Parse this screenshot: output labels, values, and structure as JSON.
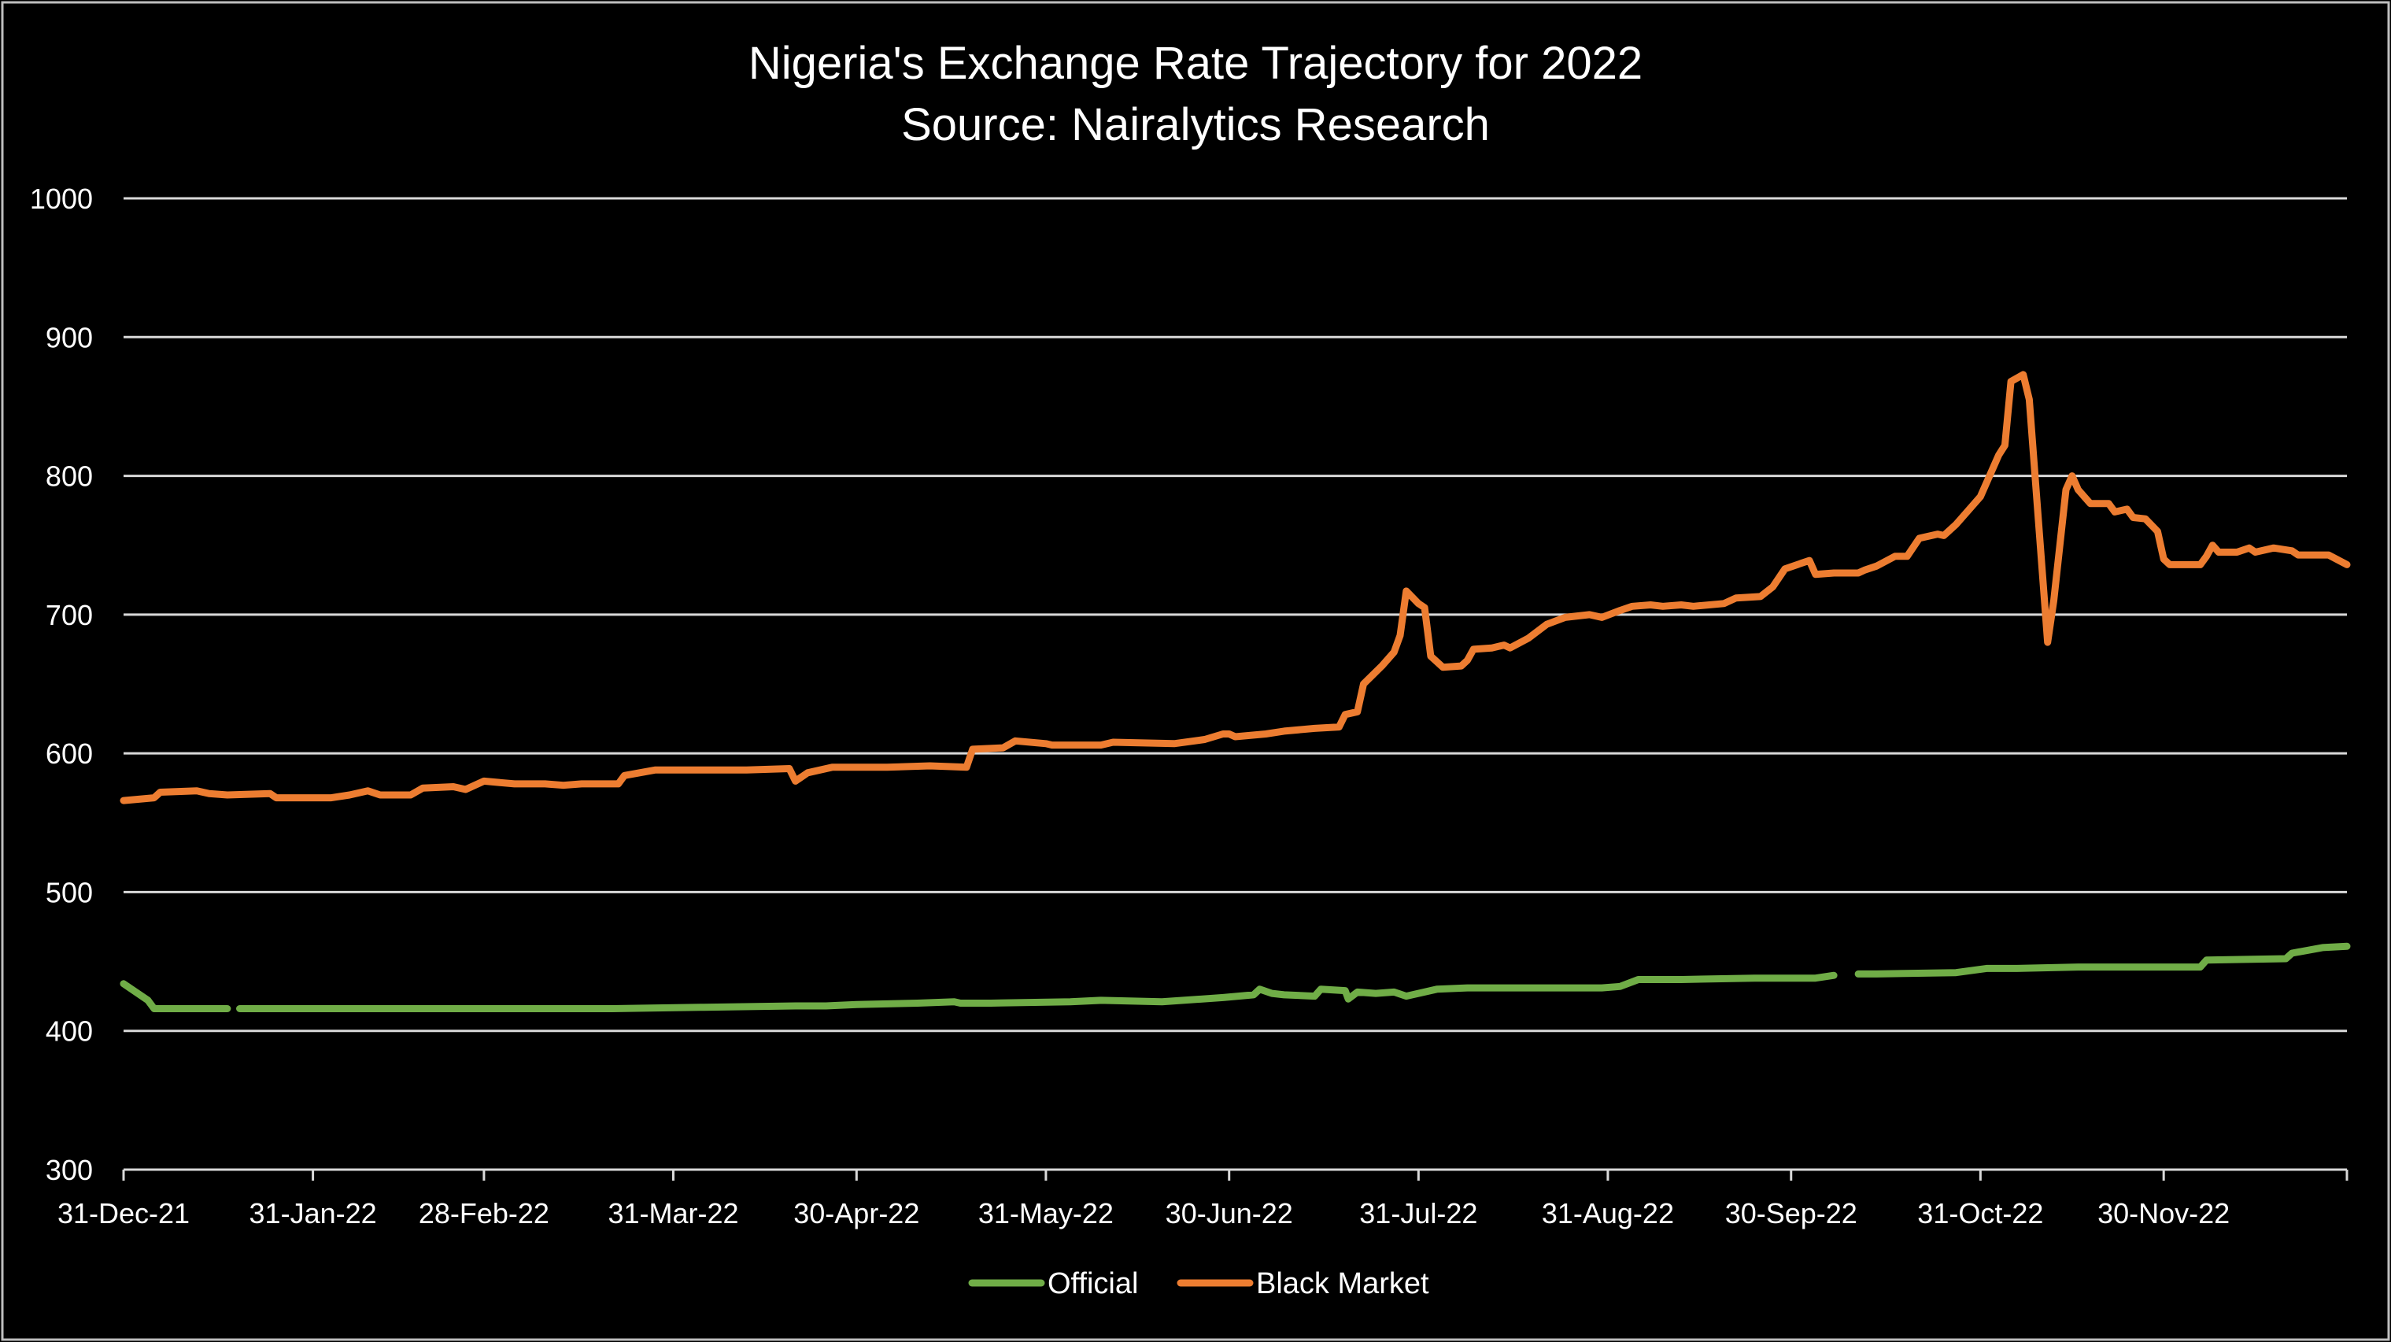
{
  "chart_data": {
    "type": "line",
    "title": "Nigeria's Exchange Rate Trajectory for 2022",
    "subtitle": "Source: Nairalytics Research",
    "xlabel": "",
    "ylabel": "",
    "x_unit": "days since 31-Dec-21",
    "xlim": [
      0,
      364
    ],
    "ylim": [
      300,
      1000
    ],
    "yticks": [
      300,
      400,
      500,
      600,
      700,
      800,
      900,
      1000
    ],
    "xticks": [
      {
        "day": 0,
        "label": "31-Dec-21"
      },
      {
        "day": 31,
        "label": "31-Jan-22"
      },
      {
        "day": 59,
        "label": "28-Feb-22"
      },
      {
        "day": 90,
        "label": "31-Mar-22"
      },
      {
        "day": 120,
        "label": "30-Apr-22"
      },
      {
        "day": 151,
        "label": "31-May-22"
      },
      {
        "day": 181,
        "label": "30-Jun-22"
      },
      {
        "day": 212,
        "label": "31-Jul-22"
      },
      {
        "day": 243,
        "label": "31-Aug-22"
      },
      {
        "day": 273,
        "label": "30-Sep-22"
      },
      {
        "day": 304,
        "label": "31-Oct-22"
      },
      {
        "day": 334,
        "label": "30-Nov-22"
      }
    ],
    "grid": true,
    "legend_position": "bottom-center",
    "series": [
      {
        "name": "Official",
        "color": "#70ad47",
        "segments": [
          [
            [
              0,
              434
            ],
            [
              4,
              422
            ],
            [
              5,
              416
            ],
            [
              17,
              416
            ]
          ],
          [
            [
              19,
              416
            ],
            [
              30,
              416
            ],
            [
              55,
              416
            ],
            [
              80,
              416
            ],
            [
              95,
              417
            ],
            [
              110,
              418
            ],
            [
              115,
              418
            ],
            [
              120,
              419
            ],
            [
              130,
              420
            ],
            [
              136,
              421
            ],
            [
              137,
              420
            ],
            [
              142,
              420
            ],
            [
              155,
              421
            ],
            [
              160,
              422
            ],
            [
              170,
              421
            ],
            [
              180,
              424
            ],
            [
              185,
              426
            ],
            [
              186,
              430
            ],
            [
              188,
              427
            ],
            [
              190,
              426
            ],
            [
              195,
              425
            ],
            [
              196,
              430
            ],
            [
              200,
              429
            ],
            [
              200.5,
              423
            ],
            [
              202,
              428
            ],
            [
              205,
              427
            ],
            [
              208,
              428
            ],
            [
              210,
              425
            ],
            [
              215,
              430
            ],
            [
              220,
              431
            ],
            [
              230,
              431
            ],
            [
              242,
              431
            ],
            [
              245,
              432
            ],
            [
              248,
              437
            ],
            [
              255,
              437
            ],
            [
              267,
              438
            ],
            [
              277,
              438
            ],
            [
              280,
              440
            ]
          ],
          [
            [
              284,
              441
            ],
            [
              287,
              441
            ],
            [
              300,
              442
            ],
            [
              305,
              445
            ],
            [
              310,
              445
            ],
            [
              320,
              446
            ],
            [
              330,
              446
            ],
            [
              340,
              446
            ],
            [
              341,
              451
            ],
            [
              354,
              452
            ],
            [
              355,
              456
            ],
            [
              360,
              460
            ],
            [
              364,
              461
            ]
          ]
        ]
      },
      {
        "name": "Black Market",
        "color": "#ed7d31",
        "segments": [
          [
            [
              0,
              566
            ],
            [
              5,
              568
            ],
            [
              6,
              572
            ],
            [
              12,
              573
            ],
            [
              14,
              571
            ],
            [
              17,
              570
            ],
            [
              24,
              571
            ],
            [
              25,
              568
            ],
            [
              34,
              568
            ],
            [
              37,
              570
            ],
            [
              40,
              573
            ],
            [
              42,
              570
            ],
            [
              47,
              570
            ],
            [
              49,
              575
            ],
            [
              54,
              576
            ],
            [
              56,
              574
            ],
            [
              59,
              580
            ],
            [
              64,
              578
            ],
            [
              69,
              578
            ],
            [
              72,
              577
            ],
            [
              75,
              578
            ],
            [
              81,
              578
            ],
            [
              82,
              584
            ],
            [
              87,
              588
            ],
            [
              96,
              588
            ],
            [
              102,
              588
            ],
            [
              109,
              589
            ],
            [
              110,
              580
            ],
            [
              112,
              586
            ],
            [
              116,
              590
            ],
            [
              125,
              590
            ],
            [
              132,
              591
            ],
            [
              138,
              590
            ],
            [
              139,
              603
            ],
            [
              144,
              604
            ],
            [
              146,
              609
            ],
            [
              151,
              607
            ],
            [
              152,
              606
            ],
            [
              160,
              606
            ],
            [
              162,
              608
            ],
            [
              172,
              607
            ],
            [
              177,
              610
            ],
            [
              180,
              614
            ],
            [
              181,
              614
            ],
            [
              182,
              612
            ],
            [
              187,
              614
            ],
            [
              190,
              616
            ],
            [
              195,
              618
            ],
            [
              199,
              619
            ],
            [
              200,
              628
            ],
            [
              202,
              630
            ],
            [
              203,
              650
            ],
            [
              206,
              663
            ],
            [
              208,
              673
            ],
            [
              209,
              685
            ],
            [
              210,
              717
            ],
            [
              212,
              708
            ],
            [
              213,
              705
            ],
            [
              214,
              670
            ],
            [
              216,
              662
            ],
            [
              219,
              663
            ],
            [
              220,
              667
            ],
            [
              221,
              675
            ],
            [
              224,
              676
            ],
            [
              226,
              678
            ],
            [
              227,
              676
            ],
            [
              230,
              683
            ],
            [
              233,
              693
            ],
            [
              236,
              698
            ],
            [
              240,
              700
            ],
            [
              242,
              698
            ],
            [
              245,
              703
            ],
            [
              247,
              706
            ],
            [
              250,
              707
            ],
            [
              252,
              706
            ],
            [
              255,
              707
            ],
            [
              257,
              706
            ],
            [
              262,
              708
            ],
            [
              264,
              712
            ],
            [
              268,
              713
            ],
            [
              270,
              720
            ],
            [
              272,
              733
            ],
            [
              276,
              739
            ],
            [
              277,
              729
            ],
            [
              280,
              730
            ],
            [
              284,
              730
            ],
            [
              285,
              732
            ],
            [
              287,
              735
            ],
            [
              290,
              742
            ],
            [
              292,
              742
            ],
            [
              294,
              755
            ],
            [
              297,
              758
            ],
            [
              298,
              757
            ],
            [
              300,
              765
            ],
            [
              304,
              785
            ],
            [
              307,
              815
            ],
            [
              308,
              822
            ],
            [
              309,
              868
            ],
            [
              311,
              873
            ],
            [
              312,
              855
            ],
            [
              315,
              680
            ],
            [
              316,
              710
            ],
            [
              318,
              790
            ],
            [
              319,
              800
            ],
            [
              320,
              790
            ],
            [
              322,
              780
            ],
            [
              325,
              780
            ],
            [
              326,
              774
            ],
            [
              328,
              776
            ],
            [
              329,
              770
            ],
            [
              331,
              769
            ],
            [
              333,
              760
            ],
            [
              334,
              740
            ],
            [
              335,
              736
            ],
            [
              340,
              736
            ],
            [
              341,
              742
            ],
            [
              342,
              750
            ],
            [
              343,
              745
            ],
            [
              346,
              745
            ],
            [
              348,
              748
            ],
            [
              349,
              745
            ],
            [
              352,
              748
            ],
            [
              355,
              746
            ],
            [
              356,
              743
            ],
            [
              361,
              743
            ],
            [
              364,
              736
            ]
          ]
        ]
      }
    ]
  }
}
